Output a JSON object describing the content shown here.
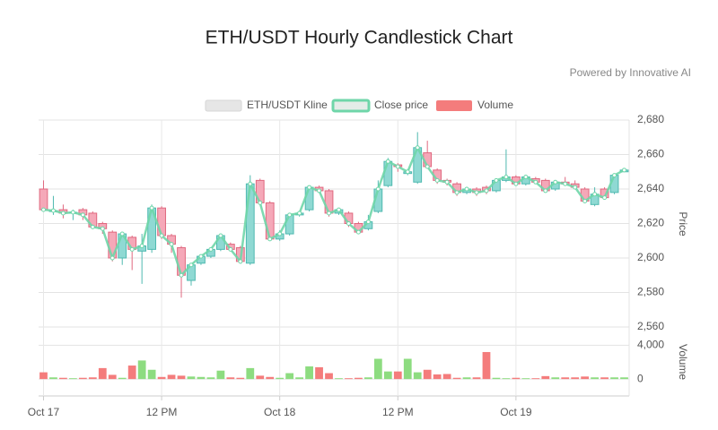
{
  "chart_data": {
    "type": "candlestick",
    "title": "ETH/USDT Hourly Candlestick Chart",
    "subtitle": "Powered by Innovative AI",
    "ylabel": "Price",
    "y2label": "Volume",
    "x": [
      "Oct 17 00:00",
      "Oct 17 01:00",
      "Oct 17 02:00",
      "Oct 17 03:00",
      "Oct 17 04:00",
      "Oct 17 05:00",
      "Oct 17 06:00",
      "Oct 17 07:00",
      "Oct 17 08:00",
      "Oct 17 09:00",
      "Oct 17 10:00",
      "Oct 17 11:00",
      "Oct 17 12:00",
      "Oct 17 13:00",
      "Oct 17 14:00",
      "Oct 17 15:00",
      "Oct 17 16:00",
      "Oct 17 17:00",
      "Oct 17 18:00",
      "Oct 17 19:00",
      "Oct 17 20:00",
      "Oct 17 21:00",
      "Oct 17 22:00",
      "Oct 17 23:00",
      "Oct 18 00:00",
      "Oct 18 01:00",
      "Oct 18 02:00",
      "Oct 18 03:00",
      "Oct 18 04:00",
      "Oct 18 05:00",
      "Oct 18 06:00",
      "Oct 18 07:00",
      "Oct 18 08:00",
      "Oct 18 09:00",
      "Oct 18 10:00",
      "Oct 18 11:00",
      "Oct 18 12:00",
      "Oct 18 13:00",
      "Oct 18 14:00",
      "Oct 18 15:00",
      "Oct 18 16:00",
      "Oct 18 17:00",
      "Oct 18 18:00",
      "Oct 18 19:00",
      "Oct 18 20:00",
      "Oct 18 21:00",
      "Oct 18 22:00",
      "Oct 18 23:00",
      "Oct 19 00:00",
      "Oct 19 01:00",
      "Oct 19 02:00",
      "Oct 19 03:00",
      "Oct 19 04:00",
      "Oct 19 05:00",
      "Oct 19 06:00",
      "Oct 19 07:00",
      "Oct 19 08:00",
      "Oct 19 09:00",
      "Oct 19 10:00",
      "Oct 19 11:00"
    ],
    "xticks": [
      {
        "value": "Oct 17 00:00",
        "label": "Oct 17"
      },
      {
        "value": "Oct 17 12:00",
        "label": "12 PM"
      },
      {
        "value": "Oct 18 00:00",
        "label": "Oct 18"
      },
      {
        "value": "Oct 18 12:00",
        "label": "12 PM"
      },
      {
        "value": "Oct 19 00:00",
        "label": "Oct 19"
      }
    ],
    "ylim": [
      2560,
      2680
    ],
    "yticks": [
      {
        "value": 2560,
        "label": "2,560"
      },
      {
        "value": 2580,
        "label": "2,580"
      },
      {
        "value": 2600,
        "label": "2,600"
      },
      {
        "value": 2620,
        "label": "2,620"
      },
      {
        "value": 2640,
        "label": "2,640"
      },
      {
        "value": 2660,
        "label": "2,660"
      },
      {
        "value": 2680,
        "label": "2,680"
      }
    ],
    "y2lim": [
      -2000,
      5000
    ],
    "y2ticks": [
      0,
      {
        "value": 4000,
        "label": "4,000"
      }
    ],
    "grid": true,
    "legend": "top",
    "series": [
      {
        "name": "ETH/USDT Kline",
        "color": "#e6e6e6",
        "up_color": "#8fd9d3",
        "up_border": "#4fb9b0",
        "down_color": "#f5a8b8",
        "down_border": "#e0687f",
        "open": [
          2640,
          2627,
          2628,
          2626,
          2628,
          2626,
          2620,
          2615,
          2600,
          2612,
          2604,
          2605,
          2629,
          2613,
          2606,
          2587,
          2597,
          2601,
          2605,
          2608,
          2606,
          2597,
          2645,
          2632,
          2611,
          2614,
          2625,
          2628,
          2641,
          2639,
          2626,
          2626,
          2620,
          2617,
          2627,
          2642,
          2654,
          2649,
          2644,
          2661,
          2651,
          2645,
          2643,
          2638,
          2640,
          2641,
          2639,
          2645,
          2647,
          2643,
          2646,
          2645,
          2640,
          2644,
          2643,
          2640,
          2631,
          2640,
          2638,
          2650
        ],
        "high": [
          2645,
          2636,
          2631,
          2628,
          2629,
          2627,
          2621,
          2616,
          2615,
          2613,
          2614,
          2631,
          2630,
          2614,
          2607,
          2597,
          2602,
          2606,
          2614,
          2609,
          2607,
          2648,
          2646,
          2633,
          2616,
          2626,
          2627,
          2642,
          2642,
          2640,
          2629,
          2627,
          2621,
          2625,
          2645,
          2658,
          2655,
          2651,
          2673,
          2668,
          2652,
          2646,
          2644,
          2641,
          2641,
          2642,
          2646,
          2663,
          2648,
          2648,
          2647,
          2646,
          2645,
          2647,
          2645,
          2641,
          2641,
          2641,
          2649,
          2652
        ],
        "low": [
          2627,
          2625,
          2623,
          2622,
          2622,
          2617,
          2614,
          2598,
          2596,
          2593,
          2585,
          2603,
          2611,
          2603,
          2577,
          2584,
          2596,
          2600,
          2604,
          2604,
          2597,
          2596,
          2631,
          2610,
          2610,
          2613,
          2624,
          2627,
          2638,
          2624,
          2625,
          2618,
          2614,
          2616,
          2626,
          2641,
          2650,
          2648,
          2643,
          2652,
          2643,
          2642,
          2636,
          2637,
          2636,
          2637,
          2638,
          2644,
          2642,
          2642,
          2643,
          2638,
          2639,
          2642,
          2640,
          2632,
          2630,
          2634,
          2637,
          2650
        ],
        "close": [
          2628,
          2627.5,
          2626,
          2626.5,
          2625,
          2618,
          2617,
          2600,
          2614,
          2605,
          2607,
          2629,
          2613,
          2608,
          2590,
          2596,
          2601,
          2605,
          2613,
          2605,
          2598,
          2643,
          2632,
          2611,
          2614,
          2625,
          2626,
          2641,
          2639,
          2626,
          2628,
          2620,
          2615,
          2621,
          2640,
          2656,
          2653,
          2650,
          2664,
          2653,
          2645,
          2644,
          2638,
          2640,
          2638,
          2639,
          2645,
          2647,
          2643,
          2647,
          2644,
          2639,
          2644,
          2643,
          2641,
          2633,
          2637,
          2635,
          2648,
          2651
        ]
      },
      {
        "name": "Close price",
        "color": "#6fd6a9"
      },
      {
        "name": "Volume",
        "color": "#f47c7c",
        "up_color": "#8ddc80",
        "down_color": "#f47c7c",
        "axis": "y2",
        "values": [
          800,
          200,
          150,
          100,
          150,
          200,
          1300,
          500,
          150,
          1600,
          2200,
          1100,
          250,
          500,
          400,
          300,
          250,
          200,
          1000,
          200,
          150,
          1300,
          400,
          250,
          150,
          700,
          200,
          1500,
          1400,
          700,
          100,
          100,
          150,
          200,
          2400,
          900,
          900,
          2400,
          800,
          1100,
          550,
          600,
          150,
          200,
          200,
          3200,
          150,
          100,
          150,
          100,
          100,
          350,
          200,
          200,
          200,
          300,
          200,
          200,
          200,
          200
        ]
      }
    ]
  }
}
